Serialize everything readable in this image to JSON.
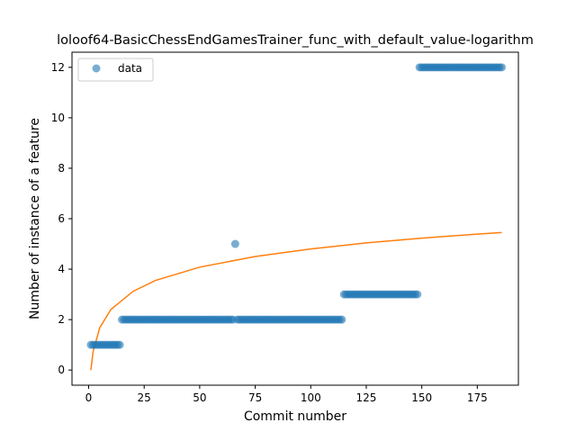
{
  "chart_data": {
    "type": "scatter",
    "title": "loloof64-BasicChessEndGamesTrainer_func_with_default_value-logarithm",
    "xlabel": "Commit number",
    "ylabel": "Number of instance of a feature",
    "xlim": [
      -7.5,
      193.5
    ],
    "ylim": [
      -0.6,
      12.6
    ],
    "xticks": [
      0,
      25,
      50,
      75,
      100,
      125,
      150,
      175
    ],
    "yticks": [
      0,
      2,
      4,
      6,
      8,
      10,
      12
    ],
    "grid": false,
    "legend": {
      "position": "top-left",
      "entries": [
        "data"
      ]
    },
    "colors": {
      "data": "#1f77b4",
      "fit": "#ff7f0e"
    },
    "series": [
      {
        "name": "data",
        "kind": "scatter",
        "segments": [
          {
            "x_from": 1,
            "x_to": 14,
            "y": 1
          },
          {
            "x_from": 15,
            "x_to": 65,
            "y": 2
          },
          {
            "x_from": 66,
            "x_to": 66,
            "y": 5
          },
          {
            "x_from": 67,
            "x_to": 114,
            "y": 2
          },
          {
            "x_from": 115,
            "x_to": 148,
            "y": 3
          },
          {
            "x_from": 149,
            "x_to": 186,
            "y": 12
          }
        ]
      },
      {
        "kind": "line",
        "fit": "logarithmic",
        "x": [
          1,
          2,
          5,
          10,
          20,
          30,
          50,
          75,
          100,
          125,
          150,
          175,
          186
        ],
        "y": [
          0.0,
          0.73,
          1.68,
          2.4,
          3.12,
          3.55,
          4.08,
          4.5,
          4.8,
          5.04,
          5.23,
          5.39,
          5.45
        ]
      }
    ]
  }
}
